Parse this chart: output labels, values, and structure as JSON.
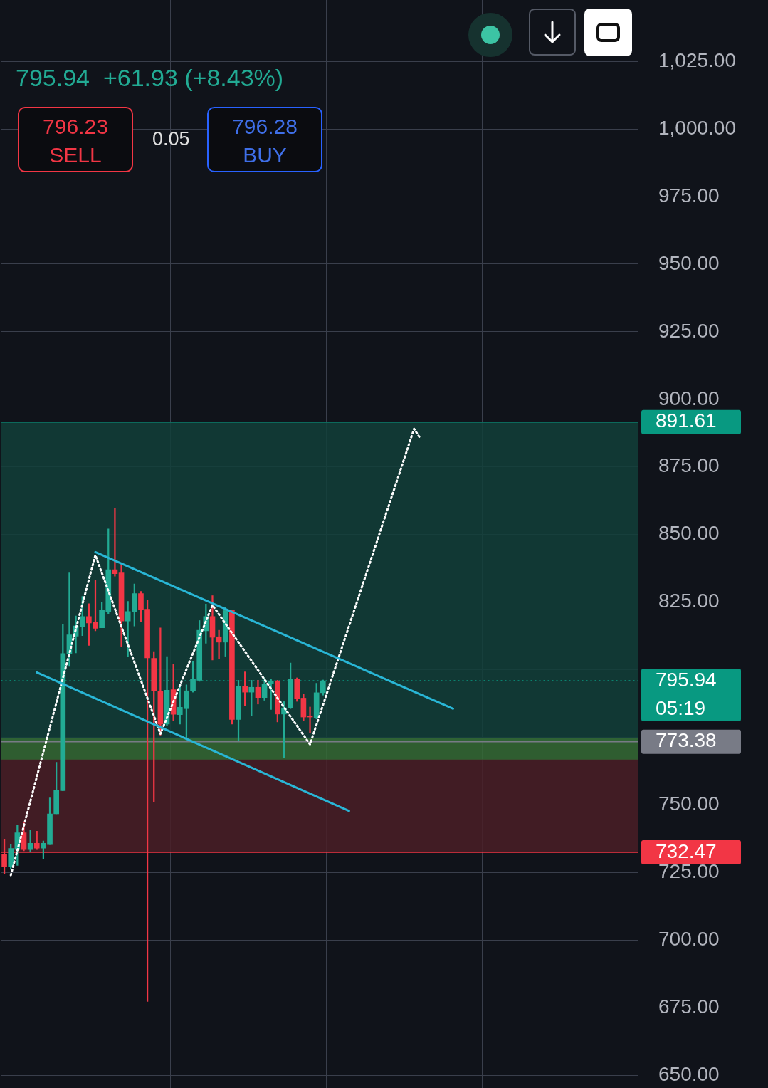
{
  "chart_data": {
    "type": "candlestick",
    "subtitle": "795.94  +61.93 (+8.43%)",
    "annotations": [
      "796.23 SELL",
      "0.05",
      "796.28 BUY"
    ],
    "categories": [
      null,
      null,
      null,
      null,
      null,
      null,
      null,
      null,
      null,
      null,
      null,
      null,
      null,
      null,
      null,
      null,
      null,
      null,
      null,
      null,
      null,
      null,
      null,
      null,
      null,
      null,
      null,
      null,
      null,
      null,
      null,
      null,
      null,
      null,
      null,
      null,
      null,
      null,
      null,
      null,
      null,
      null,
      null,
      null,
      null,
      null,
      null,
      null,
      null,
      null,
      null,
      null,
      null,
      null,
      null,
      null,
      null,
      null,
      null,
      null,
      null,
      null,
      null,
      null,
      null,
      null,
      null,
      null,
      null,
      null,
      null,
      null,
      null,
      null,
      null,
      null,
      null,
      null,
      null,
      null,
      null,
      null,
      null,
      null,
      null,
      null,
      null,
      null,
      null,
      null,
      null,
      null,
      null,
      null,
      null,
      null,
      null,
      null
    ],
    "ohlc": [
      [
        731.7,
        737.1,
        724.4,
        727.1
      ],
      [
        727.1,
        735.3,
        726.2,
        733.9
      ],
      [
        733.5,
        742.6,
        727.6,
        739.7
      ],
      [
        739.7,
        743.5,
        733.0,
        733.5
      ],
      [
        733.5,
        740.8,
        732.6,
        735.8
      ],
      [
        735.8,
        740.3,
        733.5,
        734.0
      ],
      [
        734.0,
        736.7,
        729.9,
        735.8
      ],
      [
        735.3,
        752.6,
        735.3,
        746.7
      ],
      [
        746.7,
        765.8,
        746.7,
        755.5
      ],
      [
        755.3,
        816.7,
        755.3,
        806.0
      ],
      [
        805.8,
        835.8,
        801.2,
        812.9
      ],
      [
        812.4,
        819.9,
        806.2,
        816.2
      ],
      [
        815.8,
        827.1,
        812.6,
        819.7
      ],
      [
        819.7,
        824.4,
        809.0,
        817.3
      ],
      [
        817.6,
        833.0,
        814.4,
        815.3
      ],
      [
        815.5,
        824.9,
        815.5,
        821.9
      ],
      [
        821.5,
        852.1,
        820.8,
        837.0
      ],
      [
        837.0,
        859.7,
        834.6,
        835.5
      ],
      [
        835.8,
        839.0,
        808.5,
        818.0
      ],
      [
        818.0,
        825.3,
        804.8,
        821.5
      ],
      [
        821.5,
        831.7,
        816.2,
        828.2
      ],
      [
        828.2,
        829.0,
        817.6,
        822.1
      ],
      [
        822.4,
        825.8,
        677.3,
        804.4
      ],
      [
        804.2,
        806.7,
        751.2,
        792.1
      ],
      [
        792.1,
        815.5,
        775.8,
        779.9
      ],
      [
        779.9,
        804.9,
        779.4,
        792.4
      ],
      [
        792.6,
        802.1,
        781.2,
        783.5
      ],
      [
        783.4,
        793.9,
        779.9,
        786.1
      ],
      [
        785.6,
        794.4,
        774.1,
        792.2
      ],
      [
        792.2,
        803.2,
        791.7,
        796.6
      ],
      [
        796.1,
        818.2,
        795.7,
        814.6
      ],
      [
        814.4,
        824.3,
        809.8,
        819.7
      ],
      [
        819.7,
        827.4,
        803.6,
        812.0
      ],
      [
        812.2,
        814.6,
        804.1,
        810.2
      ],
      [
        810.2,
        823.0,
        805.0,
        821.9
      ],
      [
        821.9,
        822.1,
        779.9,
        781.6
      ],
      [
        781.6,
        796.1,
        773.7,
        793.8
      ],
      [
        793.8,
        799.2,
        786.7,
        791.7
      ],
      [
        791.7,
        796.1,
        782.9,
        793.5
      ],
      [
        793.5,
        796.1,
        787.3,
        789.7
      ],
      [
        789.7,
        797.0,
        788.7,
        794.8
      ],
      [
        794.8,
        796.6,
        785.3,
        795.9
      ],
      [
        795.9,
        796.1,
        780.7,
        783.6
      ],
      [
        783.6,
        788.2,
        767.5,
        785.9
      ],
      [
        785.8,
        802.5,
        785.6,
        796.4
      ],
      [
        796.6,
        797.0,
        788.3,
        789.4
      ],
      [
        789.5,
        790.9,
        781.2,
        782.5
      ],
      [
        782.9,
        786.2,
        776.8,
        782.5
      ],
      [
        782.1,
        795.0,
        781.8,
        791.5
      ],
      [
        791.5,
        796.2,
        790.6,
        795.9
      ],
      null,
      null,
      null,
      null,
      null,
      null,
      null,
      null,
      null,
      null,
      null,
      null,
      null,
      null,
      null,
      null,
      null,
      null,
      null,
      null,
      null,
      null,
      null,
      null,
      null,
      null,
      null,
      null,
      null,
      null,
      null,
      null,
      null,
      null,
      null,
      null,
      null,
      null,
      null,
      null,
      null,
      null,
      null,
      null,
      null,
      null,
      null,
      null
    ],
    "colors": [
      "#f23645",
      "#22ab94",
      "#22ab94",
      "#f23645",
      "#22ab94",
      "#f23645",
      "#22ab94",
      "#22ab94",
      "#22ab94",
      "#22ab94",
      "#22ab94",
      "#22ab94",
      "#22ab94",
      "#f23645",
      "#f23645",
      "#22ab94",
      "#22ab94",
      "#f23645",
      "#f23645",
      "#22ab94",
      "#22ab94",
      "#f23645",
      "#f23645",
      "#f23645",
      "#f23645",
      "#22ab94",
      "#f23645",
      "#22ab94",
      "#22ab94",
      "#22ab94",
      "#22ab94",
      "#22ab94",
      "#f23645",
      "#f23645",
      "#22ab94",
      "#f23645",
      "#22ab94",
      "#f23645",
      "#22ab94",
      "#f23645",
      "#22ab94",
      "#22ab94",
      "#f23645",
      "#22ab94",
      "#22ab94",
      "#f23645",
      "#f23645",
      "#f23645",
      "#22ab94",
      "#22ab94",
      null,
      null,
      null,
      null,
      null,
      null,
      null,
      null,
      null,
      null,
      null,
      null,
      null,
      null,
      null,
      null,
      null,
      null,
      null,
      null,
      null,
      null,
      null,
      null,
      null,
      null,
      null,
      null,
      null,
      null,
      null,
      null,
      null,
      null,
      null,
      null,
      null,
      null,
      null,
      null,
      null,
      null,
      null,
      null,
      null,
      null,
      null,
      null
    ],
    "series": [
      {
        "type": "line",
        "color": "#29b6d6",
        "values": [
          null,
          null,
          null,
          null,
          null,
          null,
          null,
          null,
          null,
          null,
          null,
          null,
          null,
          null,
          843.5,
          null,
          null,
          null,
          null,
          null,
          null,
          null,
          null,
          null,
          null,
          null,
          null,
          null,
          null,
          null,
          null,
          null,
          null,
          null,
          null,
          null,
          null,
          null,
          null,
          null,
          null,
          null,
          null,
          null,
          null,
          null,
          null,
          null,
          null,
          null,
          null,
          null,
          null,
          null,
          null,
          null,
          null,
          null,
          null,
          null,
          null,
          null,
          null,
          null,
          null,
          null,
          null,
          null,
          null,
          785.6,
          null,
          null,
          null,
          null,
          null,
          null,
          null,
          null,
          null,
          null,
          null,
          null,
          null,
          null,
          null,
          null,
          null,
          null,
          null,
          null,
          null,
          null,
          null,
          null,
          null,
          null,
          null,
          null
        ]
      },
      {
        "type": "line",
        "color": "#29b6d6",
        "values": [
          null,
          null,
          null,
          null,
          null,
          799.0,
          null,
          null,
          null,
          null,
          null,
          null,
          null,
          null,
          null,
          null,
          null,
          null,
          null,
          null,
          null,
          null,
          null,
          null,
          null,
          null,
          null,
          null,
          null,
          null,
          null,
          null,
          null,
          null,
          null,
          null,
          null,
          null,
          null,
          null,
          null,
          null,
          null,
          null,
          null,
          null,
          null,
          null,
          null,
          null,
          null,
          null,
          null,
          747.8,
          null,
          null,
          null,
          null,
          null,
          null,
          null,
          null,
          null,
          null,
          null,
          null,
          null,
          null,
          null,
          null,
          null,
          null,
          null,
          null,
          null,
          null,
          null,
          null,
          null,
          null,
          null,
          null,
          null,
          null,
          null,
          null,
          null,
          null,
          null,
          null,
          null,
          null,
          null,
          null,
          null,
          null,
          null,
          null
        ]
      },
      {
        "type": "line",
        "color": "#ffffff",
        "line_style": "dotted",
        "values": [
          null,
          724.0,
          null,
          null,
          null,
          null,
          null,
          null,
          null,
          null,
          null,
          null,
          null,
          null,
          842.4,
          null,
          null,
          null,
          null,
          null,
          null,
          null,
          null,
          null,
          776.3,
          null,
          null,
          null,
          null,
          null,
          null,
          null,
          823.9,
          null,
          null,
          null,
          null,
          null,
          null,
          null,
          null,
          null,
          null,
          null,
          null,
          null,
          null,
          772.4,
          null,
          null,
          null,
          null,
          null,
          null,
          null,
          null,
          null,
          null,
          null,
          null,
          null,
          null,
          null,
          889.1,
          885.4,
          null,
          null,
          null,
          null,
          null,
          null,
          null,
          null,
          null,
          null,
          null,
          null,
          null,
          null,
          null,
          null,
          null,
          null,
          null,
          null,
          null,
          null,
          null,
          null,
          null,
          null,
          null,
          null,
          null,
          null,
          null,
          null,
          null
        ]
      }
    ],
    "bands": [
      {
        "axis": "y",
        "from": 773.38,
        "to": 891.61,
        "color": "#12403a"
      },
      {
        "axis": "y",
        "from": 732.47,
        "to": 767.0,
        "color": "#4a1f27"
      },
      {
        "axis": "y",
        "from": 766.8,
        "to": 774.8,
        "color": "#356b35"
      }
    ],
    "ref_lines": [
      {
        "axis": "y",
        "value": 891.61,
        "label": "891.61",
        "color": "#089981"
      },
      {
        "axis": "y",
        "value": 795.94,
        "label": "795.94 05:19",
        "color": "#089981",
        "line_style": "dotted"
      },
      {
        "axis": "y",
        "value": 773.38,
        "label": "773.38",
        "color": "#787b86"
      },
      {
        "axis": "y",
        "value": 732.47,
        "label": "732.47",
        "color": "#f23645"
      }
    ],
    "ylim": [
      645,
      1048
    ],
    "yticks": [
      {
        "value": 650,
        "label": "650.00"
      },
      {
        "value": 675,
        "label": "675.00"
      },
      {
        "value": 700,
        "label": "700.00"
      },
      {
        "value": 725,
        "label": "725.00"
      },
      {
        "value": 750,
        "label": "750.00"
      },
      {
        "value": 775,
        "label": null
      },
      {
        "value": 800,
        "label": null
      },
      {
        "value": 825,
        "label": "825.00"
      },
      {
        "value": 850,
        "label": "850.00"
      },
      {
        "value": 875,
        "label": "875.00"
      },
      {
        "value": 900,
        "label": "900.00"
      },
      {
        "value": 925,
        "label": "925.00"
      },
      {
        "value": 950,
        "label": "950.00"
      },
      {
        "value": 975,
        "label": "975.00"
      },
      {
        "value": 1000,
        "label": "1,000.00"
      },
      {
        "value": 1025,
        "label": "1,025.00"
      }
    ],
    "grid": true,
    "tick_labels": "y"
  }
}
